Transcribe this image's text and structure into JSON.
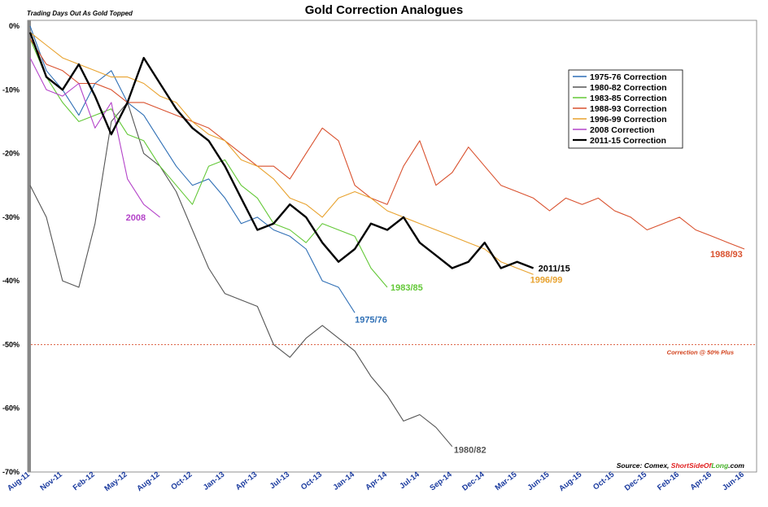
{
  "chart_data": {
    "type": "line",
    "title": "Gold Correction Analogues",
    "subtitle": "Trading Days Out As Gold Topped",
    "y_unit": "%",
    "ylim": [
      -70,
      0
    ],
    "y_ticks": [
      "0%",
      "-10%",
      "-20%",
      "-30%",
      "-40%",
      "-50%",
      "-60%",
      "-70%"
    ],
    "x_ticks": [
      "Aug-11",
      "Nov-11",
      "Feb-12",
      "May-12",
      "Aug-12",
      "Oct-12",
      "Jan-13",
      "Apr-13",
      "Jul-13",
      "Oct-13",
      "Jan-14",
      "Apr-14",
      "Jul-14",
      "Sep-14",
      "Dec-14",
      "Mar-15",
      "Jun-15",
      "Aug-15",
      "Oct-15",
      "Dec-15",
      "Feb-16",
      "Apr-16",
      "Jun-16"
    ],
    "legend_placement": "top-right",
    "reference_line": {
      "y": -50,
      "label": "Correction @ 50% Plus"
    },
    "source": {
      "prefix": "Source: Comex, ",
      "brand_1": "ShortSideOf",
      "brand_2": "Long",
      "brand_3": ".com"
    },
    "series": [
      {
        "name": "1975-76 Correction",
        "end_label": "1975/76",
        "color": "#2f6fb5",
        "x_index": [
          0,
          0.5,
          1,
          1.5,
          2,
          2.5,
          3,
          3.5,
          4,
          4.5,
          5,
          5.5,
          6,
          6.5,
          7,
          7.5,
          8,
          8.5,
          9,
          9.5,
          10
        ],
        "values": [
          0,
          -7,
          -10,
          -14,
          -9,
          -7,
          -12,
          -14,
          -18,
          -22,
          -25,
          -24,
          -27,
          -31,
          -30,
          -32,
          -33,
          -35,
          -40,
          -41,
          -45
        ]
      },
      {
        "name": "1980-82 Correction",
        "end_label": "1980/82",
        "color": "#555555",
        "x_index": [
          0,
          0.5,
          1,
          1.5,
          2,
          2.5,
          3,
          3.5,
          4,
          4.5,
          5,
          5.5,
          6,
          6.5,
          7,
          7.5,
          8,
          8.5,
          9,
          9.5,
          10,
          10.5,
          11,
          11.5,
          12,
          12.5,
          13
        ],
        "values": [
          -25,
          -30,
          -40,
          -41,
          -31,
          -15,
          -12,
          -20,
          -22,
          -26,
          -32,
          -38,
          -42,
          -43,
          -44,
          -50,
          -52,
          -49,
          -47,
          -49,
          -51,
          -55,
          -58,
          -62,
          -61,
          -63,
          -66
        ]
      },
      {
        "name": "1983-85 Correction",
        "end_label": "1983/85",
        "color": "#63c837",
        "x_index": [
          0,
          0.5,
          1,
          1.5,
          2,
          2.5,
          3,
          3.5,
          4,
          4.5,
          5,
          5.5,
          6,
          6.5,
          7,
          7.5,
          8,
          8.5,
          9,
          9.5,
          10,
          10.5,
          11
        ],
        "values": [
          -2,
          -8,
          -12,
          -15,
          -14,
          -13,
          -17,
          -18,
          -22,
          -25,
          -28,
          -22,
          -21,
          -25,
          -27,
          -31,
          -32,
          -34,
          -31,
          -32,
          -33,
          -38,
          -41
        ]
      },
      {
        "name": "1988-93 Correction",
        "end_label": "1988/93",
        "color": "#d9512e",
        "x_index": [
          0,
          0.5,
          1,
          1.5,
          2,
          2.5,
          3,
          3.5,
          4,
          4.5,
          5,
          5.5,
          6,
          6.5,
          7,
          7.5,
          8,
          8.5,
          9,
          9.5,
          10,
          10.5,
          11,
          11.5,
          12,
          12.5,
          13,
          13.5,
          14,
          14.5,
          15,
          15.5,
          16,
          16.5,
          17,
          17.5,
          18,
          18.5,
          19,
          19.5,
          20,
          20.5,
          21,
          21.5,
          22
        ],
        "values": [
          -2,
          -6,
          -7,
          -9,
          -9,
          -10,
          -12,
          -12,
          -13,
          -14,
          -15,
          -16,
          -18,
          -20,
          -22,
          -22,
          -24,
          -20,
          -16,
          -18,
          -25,
          -27,
          -28,
          -22,
          -18,
          -25,
          -23,
          -19,
          -22,
          -25,
          -26,
          -27,
          -29,
          -27,
          -28,
          -27,
          -29,
          -30,
          -32,
          -31,
          -30,
          -32,
          -33,
          -34,
          -35
        ]
      },
      {
        "name": "1996-99 Correction",
        "end_label": "1996/99",
        "color": "#e8a22e",
        "x_index": [
          0,
          0.5,
          1,
          1.5,
          2,
          2.5,
          3,
          3.5,
          4,
          4.5,
          5,
          5.5,
          6,
          6.5,
          7,
          7.5,
          8,
          8.5,
          9,
          9.5,
          10,
          10.5,
          11,
          11.5,
          12,
          12.5,
          13,
          13.5,
          14,
          14.5,
          15,
          15.5
        ],
        "values": [
          -1,
          -3,
          -5,
          -6,
          -7,
          -8,
          -8,
          -9,
          -11,
          -12,
          -15,
          -17,
          -18,
          -21,
          -22,
          -24,
          -27,
          -28,
          -30,
          -27,
          -26,
          -27,
          -29,
          -30,
          -31,
          -32,
          -33,
          -34,
          -35,
          -37,
          -38,
          -39
        ]
      },
      {
        "name": "2008 Correction",
        "end_label": "2008",
        "color": "#b444c9",
        "x_index": [
          0,
          0.5,
          1,
          1.5,
          2,
          2.5,
          3,
          3.5,
          4
        ],
        "values": [
          -5,
          -10,
          -11,
          -9,
          -16,
          -12,
          -24,
          -28,
          -30
        ]
      },
      {
        "name": "2011-15 Correction",
        "end_label": "2011/15",
        "color": "#000000",
        "x_index": [
          0,
          0.5,
          1,
          1.5,
          2,
          2.5,
          3,
          3.5,
          4,
          4.5,
          5,
          5.5,
          6,
          6.5,
          7,
          7.5,
          8,
          8.5,
          9,
          9.5,
          10,
          10.5,
          11,
          11.5,
          12,
          12.5,
          13,
          13.5,
          14,
          14.5,
          15,
          15.5
        ],
        "values": [
          -1,
          -8,
          -10,
          -6,
          -11,
          -17,
          -12,
          -5,
          -9,
          -13,
          -16,
          -18,
          -22,
          -27,
          -32,
          -31,
          -28,
          -30,
          -34,
          -37,
          -35,
          -31,
          -32,
          -30,
          -34,
          -36,
          -38,
          -37,
          -34,
          -38,
          -37,
          -38
        ]
      }
    ]
  }
}
